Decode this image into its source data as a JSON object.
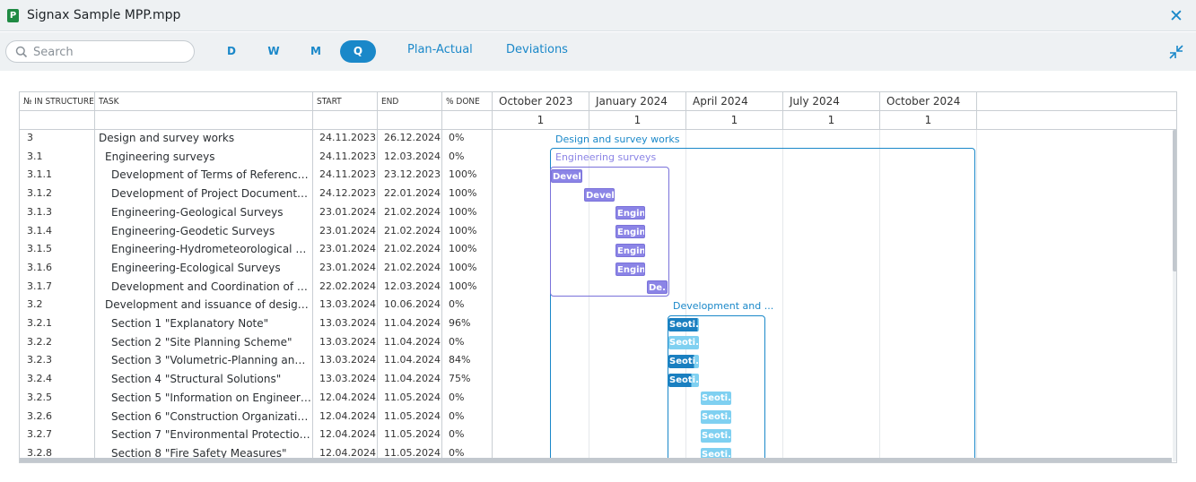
{
  "window": {
    "title": "Signax Sample MPP.mpp",
    "app_icon": "P"
  },
  "toolbar": {
    "search_placeholder": "Search",
    "zoom": [
      {
        "label": "D",
        "active": false
      },
      {
        "label": "W",
        "active": false
      },
      {
        "label": "M",
        "active": false
      },
      {
        "label": "Q",
        "active": true
      }
    ],
    "plan_actual": "Plan-Actual",
    "deviations": "Deviations"
  },
  "table": {
    "headers": {
      "num": "№ IN STRUCTURE",
      "task": "TASK",
      "start": "START",
      "end": "END",
      "done": "% DONE"
    },
    "rows": [
      {
        "num": "3",
        "task": "Design and survey works",
        "indent": 0,
        "start": "24.11.2023",
        "end": "26.12.2024",
        "done": "0%"
      },
      {
        "num": "3.1",
        "task": "Engineering surveys",
        "indent": 1,
        "start": "24.11.2023",
        "end": "12.03.2024",
        "done": "0%"
      },
      {
        "num": "3.1.1",
        "task": "Development of Terms of Reference fo...",
        "indent": 2,
        "start": "24.11.2023",
        "end": "23.12.2023",
        "done": "100%"
      },
      {
        "num": "3.1.2",
        "task": "Development of Project Documentatio...",
        "indent": 2,
        "start": "24.12.2023",
        "end": "22.01.2024",
        "done": "100%"
      },
      {
        "num": "3.1.3",
        "task": "Engineering-Geological Surveys",
        "indent": 2,
        "start": "23.01.2024",
        "end": "21.02.2024",
        "done": "100%"
      },
      {
        "num": "3.1.4",
        "task": "Engineering-Geodetic Surveys",
        "indent": 2,
        "start": "23.01.2024",
        "end": "21.02.2024",
        "done": "100%"
      },
      {
        "num": "3.1.5",
        "task": "Engineering-Hydrometeorological Sur...",
        "indent": 2,
        "start": "23.01.2024",
        "end": "21.02.2024",
        "done": "100%"
      },
      {
        "num": "3.1.6",
        "task": "Engineering-Ecological Surveys",
        "indent": 2,
        "start": "23.01.2024",
        "end": "21.02.2024",
        "done": "100%"
      },
      {
        "num": "3.1.7",
        "task": "Development and Coordination of the ...",
        "indent": 2,
        "start": "22.02.2024",
        "end": "12.03.2024",
        "done": "100%"
      },
      {
        "num": "3.2",
        "task": "Development and issuance of design d...",
        "indent": 1,
        "start": "13.03.2024",
        "end": "10.06.2024",
        "done": "0%"
      },
      {
        "num": "3.2.1",
        "task": "Section 1 \"Explanatory Note\"",
        "indent": 2,
        "start": "13.03.2024",
        "end": "11.04.2024",
        "done": "96%"
      },
      {
        "num": "3.2.2",
        "task": "Section 2 \"Site Planning Scheme\"",
        "indent": 2,
        "start": "13.03.2024",
        "end": "11.04.2024",
        "done": "0%"
      },
      {
        "num": "3.2.3",
        "task": "Section 3 \"Volumetric-Planning and Ar...",
        "indent": 2,
        "start": "13.03.2024",
        "end": "11.04.2024",
        "done": "84%"
      },
      {
        "num": "3.2.4",
        "task": "Section 4 \"Structural Solutions\"",
        "indent": 2,
        "start": "13.03.2024",
        "end": "11.04.2024",
        "done": "75%"
      },
      {
        "num": "3.2.5",
        "task": "Section 5 \"Information on Engineering ...",
        "indent": 2,
        "start": "12.04.2024",
        "end": "11.05.2024",
        "done": "0%"
      },
      {
        "num": "3.2.6",
        "task": "Section 6 \"Construction Organization P...",
        "indent": 2,
        "start": "12.04.2024",
        "end": "11.05.2024",
        "done": "0%"
      },
      {
        "num": "3.2.7",
        "task": "Section 7 \"Environmental Protection M...",
        "indent": 2,
        "start": "12.04.2024",
        "end": "11.05.2024",
        "done": "0%"
      },
      {
        "num": "3.2.8",
        "task": "Section 8 \"Fire Safety Measures\"",
        "indent": 2,
        "start": "12.04.2024",
        "end": "11.05.2024",
        "done": "0%"
      }
    ]
  },
  "gantt": {
    "quarters": [
      {
        "label": "October 2023",
        "sub": "1"
      },
      {
        "label": "January 2024",
        "sub": "1"
      },
      {
        "label": "April 2024",
        "sub": "1"
      },
      {
        "label": "July 2024",
        "sub": "1"
      },
      {
        "label": "October 2024",
        "sub": "1"
      }
    ],
    "summary_labels": {
      "r0": "Design and survey works",
      "r1": "Engineering surveys",
      "r9": "Development and ..."
    },
    "bars": [
      {
        "row": 2,
        "label": "Devel...",
        "kind": "purple"
      },
      {
        "row": 3,
        "label": "Devel...",
        "kind": "purple"
      },
      {
        "row": 4,
        "label": "Engin...",
        "kind": "purple"
      },
      {
        "row": 5,
        "label": "Engin...",
        "kind": "purple"
      },
      {
        "row": 6,
        "label": "Engin...",
        "kind": "purple"
      },
      {
        "row": 7,
        "label": "Engin...",
        "kind": "purple"
      },
      {
        "row": 8,
        "label": "De...",
        "kind": "purple"
      },
      {
        "row": 10,
        "label": "Seoti...",
        "kind": "blue",
        "progress": 0.96
      },
      {
        "row": 11,
        "label": "Seoti...",
        "kind": "blue",
        "progress": 0
      },
      {
        "row": 12,
        "label": "Seoti...",
        "kind": "blue",
        "progress": 0.84
      },
      {
        "row": 13,
        "label": "Seoti...",
        "kind": "blue",
        "progress": 0.75
      },
      {
        "row": 14,
        "label": "Seoti...",
        "kind": "blue",
        "progress": 0
      },
      {
        "row": 15,
        "label": "Seoti...",
        "kind": "blue",
        "progress": 0
      },
      {
        "row": 16,
        "label": "Seoti...",
        "kind": "blue",
        "progress": 0
      },
      {
        "row": 17,
        "label": "Seoti...",
        "kind": "blue",
        "progress": 0
      }
    ],
    "colors": {
      "accent": "#1a88c9",
      "purple": "#8b84e6",
      "purple_border": "#7a72da",
      "light_blue": "#7fd0f1",
      "dark_blue": "#1a7fc0"
    }
  }
}
